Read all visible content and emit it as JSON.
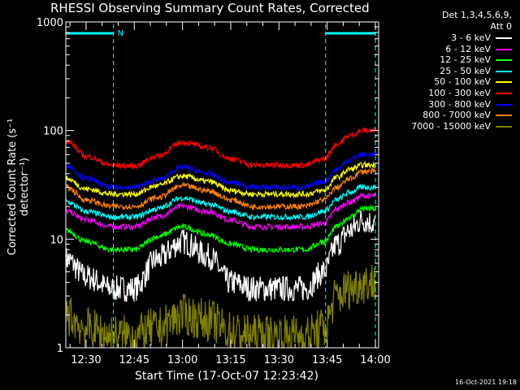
{
  "chart_data": {
    "type": "line",
    "title": "RHESSI Observing Summary Count Rates, Corrected",
    "xlabel": "Start Time (17-Oct-07 12:23:42)",
    "ylabel": "Corrected Count Rate (s⁻¹ detector⁻¹)",
    "yscale": "log",
    "ylim": [
      1,
      1000
    ],
    "xlim": [
      "12:23:42",
      "14:01:00"
    ],
    "x_ticks": [
      "12:30",
      "12:45",
      "13:00",
      "13:15",
      "13:30",
      "13:45",
      "14:00"
    ],
    "y_ticks": [
      "1",
      "10",
      "100",
      "1000"
    ],
    "night_markers": {
      "label": "N",
      "intervals": [
        [
          "12:23:42",
          "12:38:30"
        ],
        [
          "13:44:30",
          "14:00:00"
        ]
      ]
    },
    "legend_header": [
      "Det 1,3,4,5,6,9,",
      "Att 0"
    ],
    "x": [
      "12:24",
      "12:30",
      "12:38",
      "12:45",
      "12:52",
      "13:00",
      "13:08",
      "13:15",
      "13:22",
      "13:30",
      "13:38",
      "13:44",
      "13:48",
      "13:52",
      "13:56",
      "14:00"
    ],
    "series": [
      {
        "name": "3 - 6 keV",
        "color": "#ffffff",
        "values": [
          6.5,
          4.5,
          3.5,
          3.5,
          6.5,
          9.5,
          7,
          4,
          3.5,
          3.5,
          3.5,
          5,
          9,
          12,
          15,
          14
        ]
      },
      {
        "name": "6 - 12 keV",
        "color": "#ff00ff",
        "values": [
          18,
          15,
          13,
          13,
          16,
          20,
          18,
          15,
          13,
          13,
          13,
          14,
          19,
          22,
          25,
          25
        ]
      },
      {
        "name": "12 - 25 keV",
        "color": "#00ff00",
        "values": [
          12,
          9.5,
          8,
          8,
          10.5,
          13,
          11,
          9,
          8,
          8,
          8,
          9.5,
          13,
          16,
          19,
          19
        ]
      },
      {
        "name": "25 - 50 keV",
        "color": "#00ffff",
        "values": [
          22,
          18,
          16,
          16,
          19,
          24,
          21,
          18,
          16,
          16,
          16,
          18,
          23,
          27,
          30,
          30
        ]
      },
      {
        "name": "50 - 100 keV",
        "color": "#ffff00",
        "values": [
          36,
          29,
          26,
          26,
          31,
          38,
          34,
          28,
          26,
          26,
          26,
          28,
          37,
          44,
          48,
          48
        ]
      },
      {
        "name": "100 - 300 keV",
        "color": "#ff0000",
        "values": [
          80,
          58,
          48,
          47,
          58,
          78,
          70,
          55,
          48,
          48,
          48,
          55,
          75,
          90,
          100,
          100
        ]
      },
      {
        "name": "300 - 800 keV",
        "color": "#0000ff",
        "values": [
          48,
          36,
          30,
          30,
          35,
          46,
          40,
          33,
          30,
          30,
          30,
          34,
          44,
          54,
          60,
          60
        ]
      },
      {
        "name": "800 - 7000 keV",
        "color": "#ff8000",
        "values": [
          30,
          23,
          20,
          20,
          24,
          31,
          28,
          23,
          20,
          20,
          20,
          23,
          30,
          36,
          42,
          42
        ]
      },
      {
        "name": "7000 - 15000 keV",
        "color": "#808000",
        "values": [
          2,
          1.5,
          1.3,
          1.3,
          1.5,
          2,
          1.8,
          1.4,
          1.3,
          1.3,
          1.3,
          1.5,
          3,
          3.5,
          4,
          4
        ]
      }
    ]
  },
  "footer": {
    "timestamp": "16-Oct-2021 19:18"
  }
}
